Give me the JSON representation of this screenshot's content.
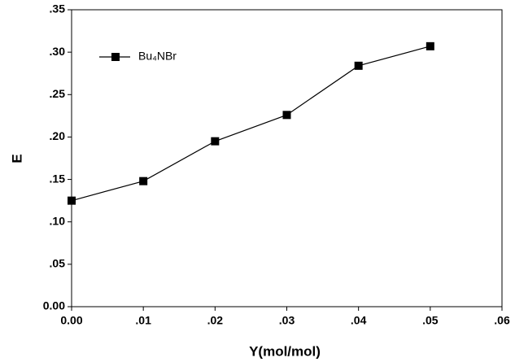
{
  "chart_data": {
    "type": "line",
    "x_label": "Y(mol/mol)",
    "y_label": "E",
    "x": [
      0,
      0.01,
      0.02,
      0.03,
      0.04,
      0.05
    ],
    "series": [
      {
        "name": "Bu₄NBr",
        "color": "#000000",
        "values": [
          0.125,
          0.148,
          0.195,
          0.226,
          0.284,
          0.307
        ]
      }
    ],
    "xlim": [
      0,
      0.06
    ],
    "xticks": [
      {
        "value": 0,
        "label": "0.00"
      },
      {
        "value": 0.01,
        "label": ".01"
      },
      {
        "value": 0.02,
        "label": ".02"
      },
      {
        "value": 0.03,
        "label": ".03"
      },
      {
        "value": 0.04,
        "label": ".04"
      },
      {
        "value": 0.05,
        "label": ".05"
      },
      {
        "value": 0.06,
        "label": ".06"
      }
    ],
    "ylim": [
      0,
      0.35
    ],
    "yticks": [
      {
        "value": 0,
        "label": "0.00"
      },
      {
        "value": 0.05,
        "label": ".05"
      },
      {
        "value": 0.1,
        "label": ".10"
      },
      {
        "value": 0.15,
        "label": ".15"
      },
      {
        "value": 0.2,
        "label": ".20"
      },
      {
        "value": 0.25,
        "label": ".25"
      },
      {
        "value": 0.3,
        "label": ".30"
      },
      {
        "value": 0.35,
        "label": ".35"
      }
    ],
    "grid": false,
    "legend": "upper left"
  }
}
